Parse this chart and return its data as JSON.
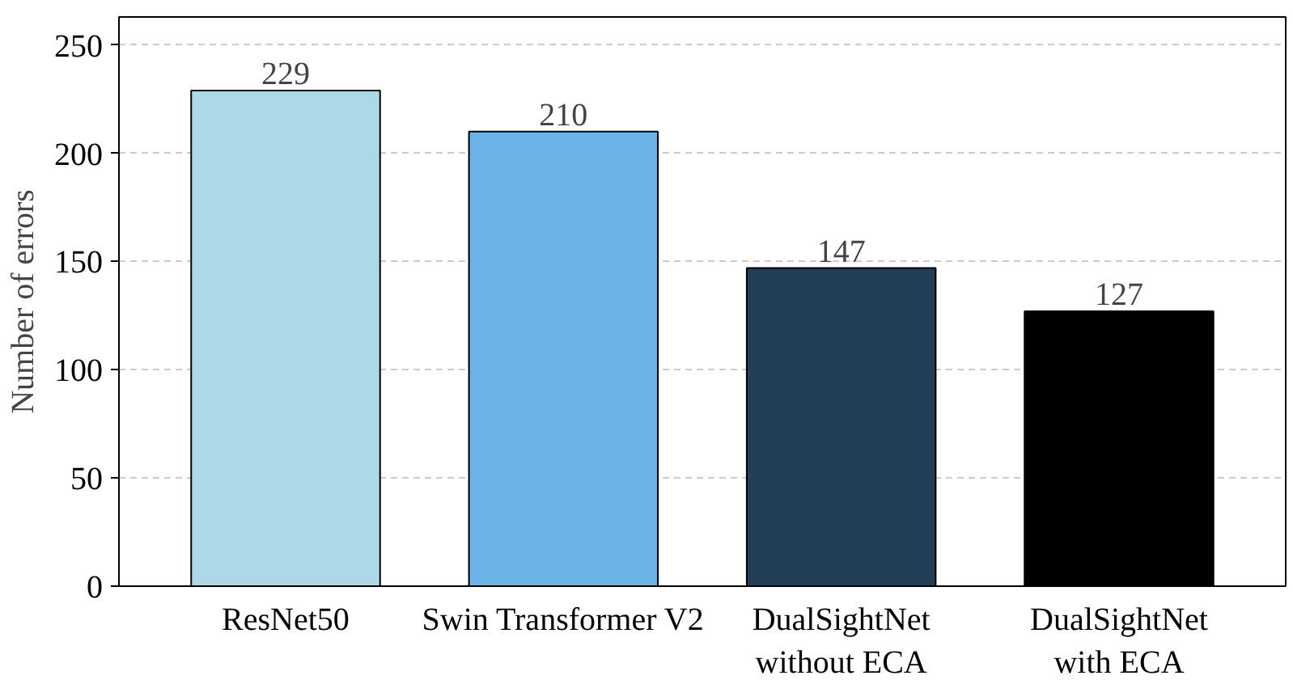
{
  "chart_data": {
    "type": "bar",
    "ylabel": "Number of errors",
    "categories": [
      "ResNet50",
      "Swin Transformer V2",
      "DualSightNet\nwithout ECA",
      "DualSightNet\nwith ECA"
    ],
    "values": [
      229,
      210,
      147,
      127
    ],
    "colors": [
      "#add8e6",
      "#6ab4e8",
      "#223f57",
      "#000000"
    ],
    "ylim": [
      0,
      263
    ],
    "yticks": [
      0,
      50,
      100,
      150,
      200,
      250
    ],
    "grid": "y",
    "data_labels": true
  }
}
